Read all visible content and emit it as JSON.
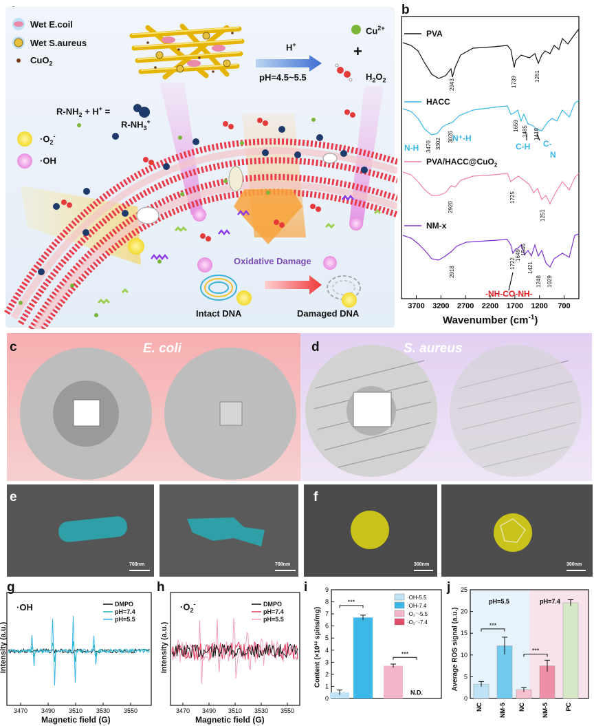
{
  "panel_labels": {
    "a": "a",
    "b": "b",
    "c": "c",
    "d": "d",
    "e": "e",
    "f": "f",
    "g": "g",
    "h": "h",
    "i": "i",
    "j": "j"
  },
  "colors": {
    "blue": "#38b7e6",
    "pink": "#f07fa8",
    "purple": "#7a2fd0",
    "red": "#e02020",
    "black": "#111111"
  },
  "schematic": {
    "legend_ecoli": "Wet E.coil",
    "legend_saureus": "Wet S.aureus",
    "legend_cuo2": "CuO",
    "legend_cuo2_sub": "2",
    "acid_label": "H",
    "acid_sup": "+",
    "ph_range": "pH=4.5~5.5",
    "cu_ion": "Cu",
    "cu_sup": "2+",
    "plus": "+",
    "h2o2": "H",
    "h2o2_a": "2",
    "h2o2_b": "O",
    "h2o2_c": "2",
    "reaction_lhs": "R-NH",
    "reaction_lhs_sub": "2",
    "reaction_lhs_mid": " + H",
    "reaction_lhs_sup": "+",
    "reaction_lhs_eq": " =",
    "reaction_rhs": "R-NH",
    "reaction_rhs_sub": "3",
    "reaction_rhs_sup": "+",
    "superoxide": "·O",
    "superoxide_sub": "2",
    "superoxide_sup": "-",
    "hydroxyl": "·OH",
    "oxidative_damage": "Oxidative Damage",
    "intact_dna": "Intact DNA",
    "damaged_dna": "Damaged DNA"
  },
  "ftir": {
    "series": [
      {
        "name": "PVA",
        "peaks": [
          "2943",
          "1739",
          "1261"
        ]
      },
      {
        "name": "HACC",
        "peaks": [
          "3470",
          "3302",
          "3026",
          "1659",
          "1485",
          "1418"
        ]
      },
      {
        "name": "PVA/HACC@CuO",
        "peaks": [
          "2920",
          "1725",
          "1251"
        ]
      },
      {
        "name": "NM-x",
        "peaks": [
          "2918",
          "1722",
          "1649",
          "1546",
          "1421",
          "1248",
          "1029"
        ]
      }
    ],
    "hacc_sub": "2",
    "assign_nh": "N-H",
    "assign_nph": "N⁺-H",
    "assign_ch": "C-H",
    "assign_cn1": "C-",
    "assign_cn2": "N",
    "assign_urea": "-NH-CO-NH-",
    "x_ticks": [
      "3700",
      "3200",
      "2700",
      "2200",
      "1700",
      "1200",
      "700"
    ],
    "x_label": "Wavenumber (cm",
    "x_label_sup": "-1",
    "x_label_end": ")"
  },
  "plates": {
    "ecoli": "E. coli",
    "saureus": "S. aureus"
  },
  "sem": {
    "e_left": "700nm",
    "e_right": "700nm",
    "f_left": "300nm",
    "f_right": "300nm"
  },
  "epr_oh": {
    "title": "·OH",
    "legend": [
      "DMPO",
      "pH=7.4",
      "pH=5.5"
    ],
    "x_ticks": [
      "3470",
      "3490",
      "3510",
      "3530",
      "3550"
    ],
    "x_label": "Magnetic field (G)",
    "y_label": "Intensity (a.u.)"
  },
  "epr_o2": {
    "title": "·O",
    "title_sub": "2",
    "title_sup": "-",
    "legend": [
      "DMPO",
      "pH=7.4",
      "pH=5.5"
    ],
    "x_ticks": [
      "3470",
      "3490",
      "3510",
      "3530",
      "3550"
    ],
    "x_label": "Magnetic field (G)",
    "y_label": "Intensity (a.u.)"
  },
  "chart_data": [
    {
      "type": "bar",
      "panel": "i",
      "ylabel": "Content (×10¹² spins/mg)",
      "ylim": [
        0,
        9
      ],
      "y_ticks": [
        "0",
        "1",
        "2",
        "3",
        "4",
        "5",
        "6",
        "7",
        "8",
        "9"
      ],
      "series": [
        {
          "name": "·OH-5.5",
          "value": 0.5,
          "err": 0.2,
          "color": "#bfe3f6"
        },
        {
          "name": "·OH-7.4",
          "value": 6.7,
          "err": 0.2,
          "color": "#3bb8e8"
        },
        {
          "name": "·O₂⁻-5.5",
          "value": 2.7,
          "err": 0.15,
          "color": "#f2b6c8"
        },
        {
          "name": "·O₂⁻-7.4",
          "value": 0,
          "err": 0,
          "color": "#e24a6a"
        }
      ],
      "annotations": [
        "***",
        "***",
        "N.D."
      ]
    },
    {
      "type": "bar",
      "panel": "j",
      "ylabel": "Average ROS signal (a.u.)",
      "ylim": [
        0,
        25
      ],
      "y_ticks": [
        "0",
        "5",
        "10",
        "15",
        "20",
        "25"
      ],
      "categories": [
        "NC",
        "NM-5",
        "NC",
        "NM-5",
        "PC"
      ],
      "values": [
        3.3,
        12.1,
        2.0,
        7.5,
        22.0
      ],
      "errors": [
        0.6,
        2.0,
        0.5,
        1.3,
        0.7
      ],
      "colors": [
        "#bfe3f6",
        "#6fcaee",
        "#f6c0cf",
        "#ef8fa6",
        "#d7e8c6"
      ],
      "groups": [
        "pH=5.5",
        "pH=7.4"
      ],
      "annotations": [
        "***",
        "***"
      ]
    }
  ]
}
